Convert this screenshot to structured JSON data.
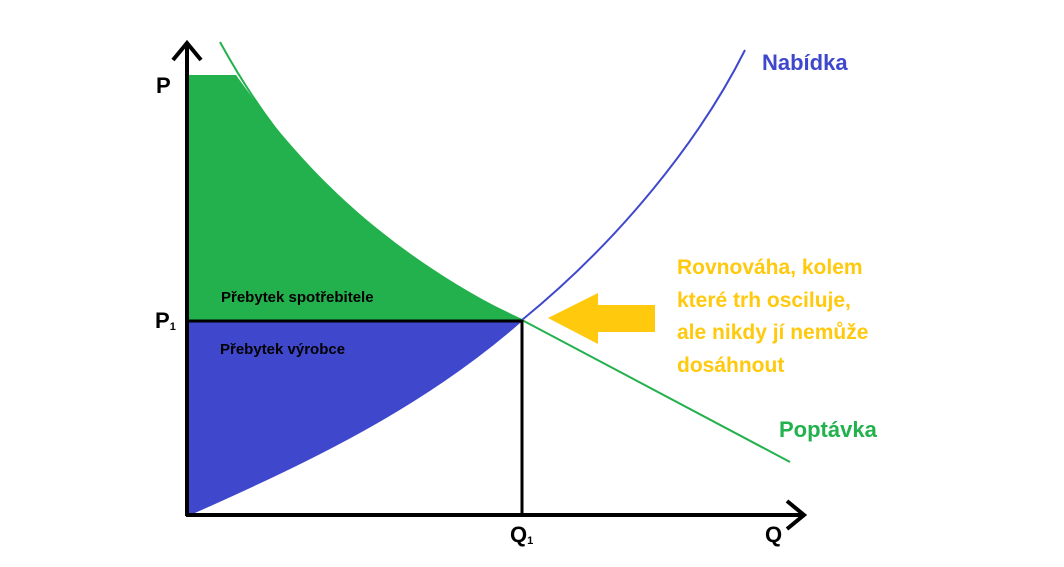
{
  "labels": {
    "p_axis": "P",
    "q_axis": "Q",
    "p1_main": "P",
    "p1_sub": "1",
    "q1_main": "Q",
    "q1_sub": "1",
    "consumer_surplus": "Přebytek spotřebitele",
    "producer_surplus": "Přebytek výrobce",
    "supply": "Nabídka",
    "demand": "Poptávka"
  },
  "note_lines": [
    "Rovnováha, kolem",
    "které trh osciluje,",
    "ale nikdy jí nemůže",
    "dosáhnout"
  ],
  "colors": {
    "consumer_surplus": "#22b14c",
    "producer_surplus": "#3f48cc",
    "supply": "#3f48cc",
    "demand": "#22b14c",
    "note": "#ffc90e",
    "arrow": "#ffc90e",
    "axes": "#000000"
  }
}
